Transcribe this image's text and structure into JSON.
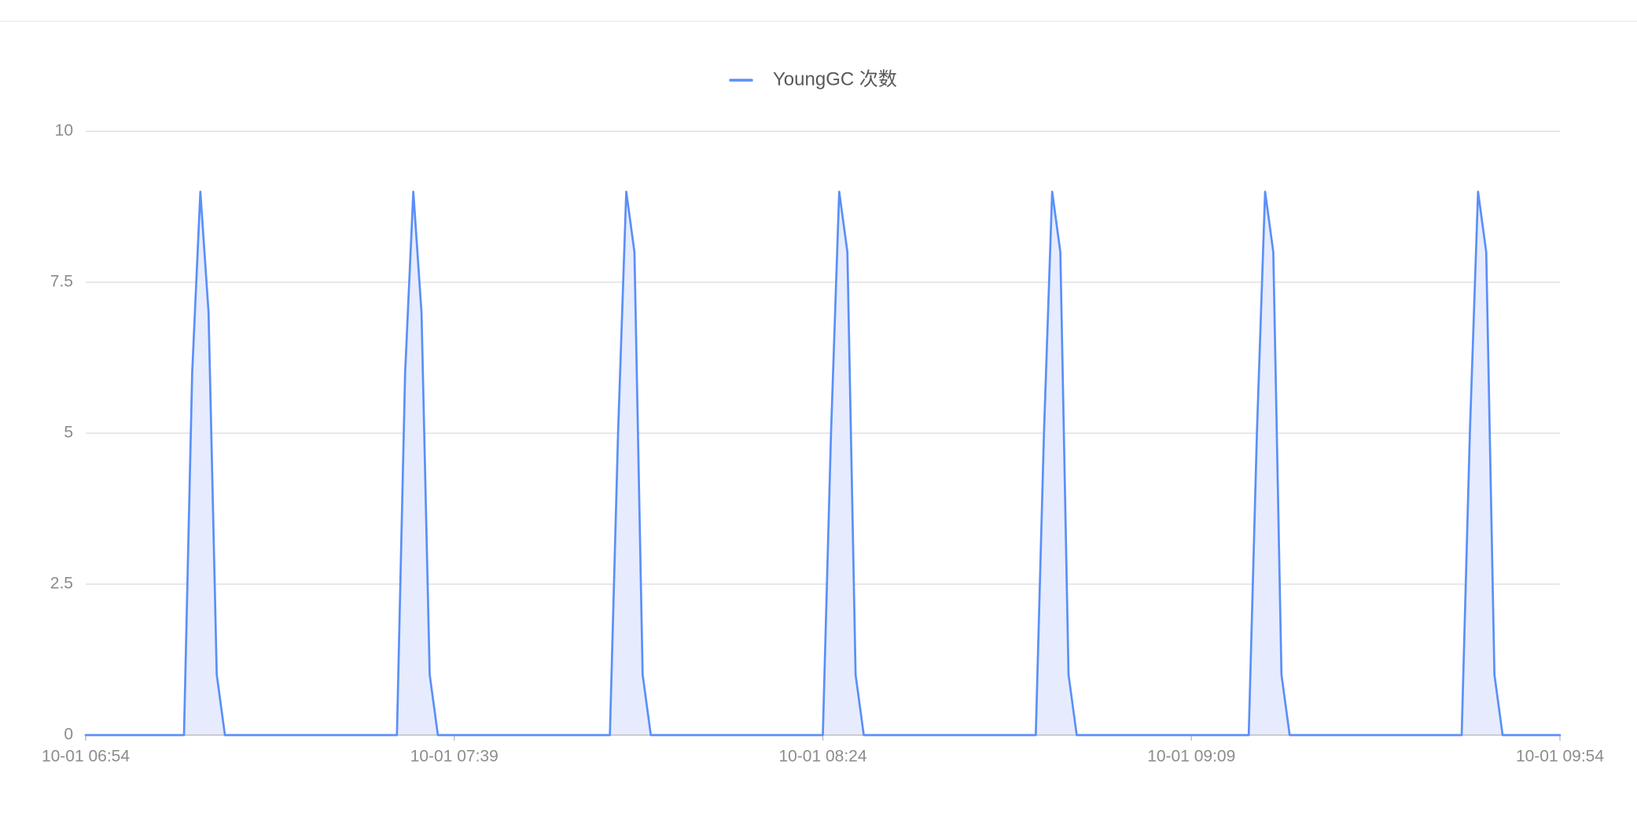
{
  "chart_data": {
    "type": "area",
    "title": "",
    "xlabel": "",
    "ylabel": "",
    "legend_position": "top-center",
    "grid": true,
    "ylim": [
      0,
      10
    ],
    "yticks": [
      0,
      2.5,
      5,
      7.5,
      10
    ],
    "x_range_minutes": [
      0,
      180
    ],
    "x_step_minutes": 1,
    "xticks": [
      {
        "label": "10-01 06:54",
        "minute": 0
      },
      {
        "label": "10-01 07:39",
        "minute": 45
      },
      {
        "label": "10-01 08:24",
        "minute": 90
      },
      {
        "label": "10-01 09:09",
        "minute": 135
      },
      {
        "label": "10-01 09:54",
        "minute": 180
      }
    ],
    "series": [
      {
        "name": "YoungGC 次数",
        "color": "#5B8FF9",
        "fill": "#E6ECFD",
        "values": [
          0,
          0,
          0,
          0,
          0,
          0,
          0,
          0,
          0,
          0,
          0,
          0,
          0,
          6,
          9,
          7,
          1,
          0,
          0,
          0,
          0,
          0,
          0,
          0,
          0,
          0,
          0,
          0,
          0,
          0,
          0,
          0,
          0,
          0,
          0,
          0,
          0,
          0,
          0,
          6,
          9,
          7,
          1,
          0,
          0,
          0,
          0,
          0,
          0,
          0,
          0,
          0,
          0,
          0,
          0,
          0,
          0,
          0,
          0,
          0,
          0,
          0,
          0,
          0,
          0,
          5,
          9,
          8,
          1,
          0,
          0,
          0,
          0,
          0,
          0,
          0,
          0,
          0,
          0,
          0,
          0,
          0,
          0,
          0,
          0,
          0,
          0,
          0,
          0,
          0,
          0,
          5,
          9,
          8,
          1,
          0,
          0,
          0,
          0,
          0,
          0,
          0,
          0,
          0,
          0,
          0,
          0,
          0,
          0,
          0,
          0,
          0,
          0,
          0,
          0,
          0,
          0,
          5,
          9,
          8,
          1,
          0,
          0,
          0,
          0,
          0,
          0,
          0,
          0,
          0,
          0,
          0,
          0,
          0,
          0,
          0,
          0,
          0,
          0,
          0,
          0,
          0,
          0,
          5,
          9,
          8,
          1,
          0,
          0,
          0,
          0,
          0,
          0,
          0,
          0,
          0,
          0,
          0,
          0,
          0,
          0,
          0,
          0,
          0,
          0,
          0,
          0,
          0,
          0,
          5,
          9,
          8,
          1,
          0,
          0,
          0,
          0,
          0,
          0,
          0,
          0
        ]
      }
    ]
  }
}
